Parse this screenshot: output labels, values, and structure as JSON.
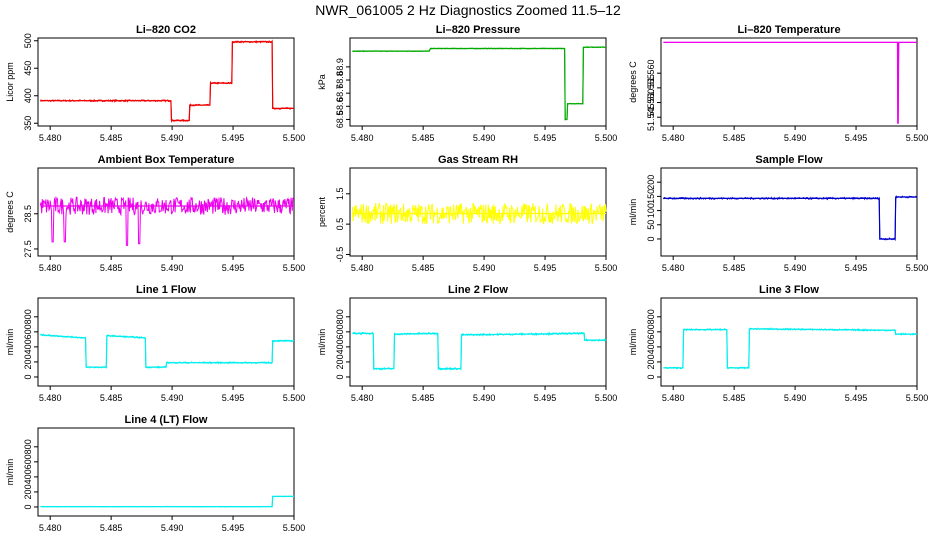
{
  "figure": {
    "title": "NWR_061005  2 Hz Diagnostics Zoomed 11.5–12"
  },
  "chart_data": [
    {
      "type": "line",
      "title": "Li–820 CO2",
      "ylabel": "Licor ppm",
      "color": "#ee0000",
      "xlim": [
        5.479,
        5.5
      ],
      "xticks": [
        "5.480",
        "5.485",
        "5.490",
        "5.495",
        "5.500"
      ],
      "ylim": [
        345,
        505
      ],
      "yticks": [
        "350",
        "400",
        "450",
        "500"
      ],
      "series": [
        {
          "x": [
            5.4792,
            5.4899,
            5.48995,
            5.4914,
            5.49145,
            5.4931,
            5.49315,
            5.4949,
            5.49495,
            5.4982,
            5.49825,
            5.5
          ],
          "y": [
            391,
            391,
            355,
            355,
            383,
            383,
            423,
            423,
            498,
            498,
            377,
            377
          ],
          "noise": 1.5
        }
      ]
    },
    {
      "type": "line",
      "title": "Li–820 Pressure",
      "ylabel": "kPa",
      "color": "#00aa00",
      "xlim": [
        5.479,
        5.5
      ],
      "xticks": [
        "5.480",
        "5.485",
        "5.490",
        "5.495",
        "5.500"
      ],
      "ylim": [
        68.45,
        69.12
      ],
      "yticks": [
        "68.5",
        "68.6",
        "68.7",
        "68.8",
        "68.9"
      ],
      "series": [
        {
          "x": [
            5.4792,
            5.4855,
            5.4856,
            5.4966,
            5.49665,
            5.4968,
            5.49685,
            5.4981,
            5.49815,
            5.5
          ],
          "y": [
            69.02,
            69.02,
            69.04,
            69.04,
            68.5,
            68.5,
            68.62,
            68.62,
            69.05,
            69.05
          ],
          "noise": 0.003
        }
      ]
    },
    {
      "type": "line",
      "title": "Li–820 Temperature",
      "ylabel": "degrees C",
      "color": "#ee00ee",
      "xlim": [
        5.479,
        5.5
      ],
      "xticks": [
        "5.480",
        "5.485",
        "5.490",
        "5.495",
        "5.500"
      ],
      "ylim": [
        51.542,
        51.572
      ],
      "yticks": [
        "51.545",
        "51.550",
        "51.555",
        "51.560"
      ],
      "series": [
        {
          "x": [
            5.4792,
            5.4984,
            5.49842,
            5.49846,
            5.4985,
            5.5
          ],
          "y": [
            51.5705,
            51.5705,
            51.543,
            51.543,
            51.5705,
            51.5705
          ],
          "noise": 0
        }
      ]
    },
    {
      "type": "line",
      "title": "Ambient Box Temperature",
      "ylabel": "degrees C",
      "color": "#ee00ee",
      "xlim": [
        5.479,
        5.5
      ],
      "xticks": [
        "5.480",
        "5.485",
        "5.490",
        "5.495",
        "5.500"
      ],
      "ylim": [
        27.3,
        29.8
      ],
      "yticks": [
        "27.5",
        "28.5"
      ],
      "series": [
        {
          "x": [
            5.4792,
            5.5
          ],
          "y": [
            28.72,
            28.72
          ],
          "noise": 0.25,
          "spikes": [
            [
              5.4802,
              27.7
            ],
            [
              5.4812,
              27.7
            ],
            [
              5.4863,
              27.6
            ],
            [
              5.4873,
              27.65
            ]
          ]
        }
      ]
    },
    {
      "type": "line",
      "title": "Gas Stream RH",
      "ylabel": "percent",
      "color": "#ffff00",
      "xlim": [
        5.479,
        5.5
      ],
      "xticks": [
        "5.480",
        "5.485",
        "5.490",
        "5.495",
        "5.500"
      ],
      "ylim": [
        -0.55,
        2.35
      ],
      "yticks": [
        "-0.5",
        "0.5",
        "1.5"
      ],
      "series": [
        {
          "x": [
            5.4792,
            5.5
          ],
          "y": [
            0.85,
            0.85
          ],
          "noise": 0.35
        }
      ]
    },
    {
      "type": "line",
      "title": "Sample Flow",
      "ylabel": "ml/min",
      "color": "#0000cc",
      "xlim": [
        5.479,
        5.5
      ],
      "xticks": [
        "5.480",
        "5.485",
        "5.490",
        "5.495",
        "5.500"
      ],
      "ylim": [
        -60,
        250
      ],
      "yticks": [
        "0",
        "50",
        "100",
        "150",
        "200"
      ],
      "series": [
        {
          "x": [
            5.4792,
            5.4969,
            5.49695,
            5.4982,
            5.49825,
            5.5
          ],
          "y": [
            143,
            143,
            0,
            0,
            148,
            148
          ],
          "noise": 3
        }
      ]
    },
    {
      "type": "line",
      "title": "Line 1 Flow",
      "ylabel": "ml/min",
      "color": "#00eeee",
      "xlim": [
        5.479,
        5.5
      ],
      "xticks": [
        "5.480",
        "5.485",
        "5.490",
        "5.495",
        "5.500"
      ],
      "ylim": [
        -120,
        1050
      ],
      "yticks": [
        "0",
        "200",
        "400",
        "600",
        "800"
      ],
      "series": [
        {
          "x": [
            5.4792,
            5.4829,
            5.48295,
            5.4846,
            5.48465,
            5.4878,
            5.48785,
            5.4895,
            5.48955,
            5.4982,
            5.49825,
            5.5
          ],
          "y": [
            560,
            520,
            130,
            130,
            550,
            520,
            130,
            130,
            190,
            190,
            480,
            480
          ],
          "noise": 10
        }
      ]
    },
    {
      "type": "line",
      "title": "Line 2 Flow",
      "ylabel": "ml/min",
      "color": "#00eeee",
      "xlim": [
        5.479,
        5.5
      ],
      "xticks": [
        "5.480",
        "5.485",
        "5.490",
        "5.495",
        "5.500"
      ],
      "ylim": [
        -120,
        1050
      ],
      "yticks": [
        "0",
        "200",
        "400",
        "600",
        "800"
      ],
      "series": [
        {
          "x": [
            5.4792,
            5.4809,
            5.48095,
            5.4826,
            5.48265,
            5.4862,
            5.48625,
            5.4881,
            5.48815,
            5.4982,
            5.49825,
            5.5
          ],
          "y": [
            580,
            580,
            110,
            110,
            570,
            580,
            110,
            110,
            560,
            580,
            490,
            490
          ],
          "noise": 12
        }
      ]
    },
    {
      "type": "line",
      "title": "Line 3 Flow",
      "ylabel": "ml/min",
      "color": "#00eeee",
      "xlim": [
        5.479,
        5.5
      ],
      "xticks": [
        "5.480",
        "5.485",
        "5.490",
        "5.495",
        "5.500"
      ],
      "ylim": [
        -120,
        1050
      ],
      "yticks": [
        "0",
        "200",
        "400",
        "600",
        "800"
      ],
      "series": [
        {
          "x": [
            5.4792,
            5.4808,
            5.48085,
            5.4844,
            5.48445,
            5.4862,
            5.48625,
            5.4982,
            5.49825,
            5.5
          ],
          "y": [
            120,
            120,
            630,
            630,
            120,
            120,
            640,
            620,
            570,
            570
          ],
          "noise": 10
        }
      ]
    },
    {
      "type": "line",
      "title": "Line 4 (LT) Flow",
      "ylabel": "ml/min",
      "color": "#00eeee",
      "xlim": [
        5.479,
        5.5
      ],
      "xticks": [
        "5.480",
        "5.485",
        "5.490",
        "5.495",
        "5.500"
      ],
      "ylim": [
        -120,
        1050
      ],
      "yticks": [
        "0",
        "200",
        "400",
        "600",
        "800"
      ],
      "series": [
        {
          "x": [
            5.4792,
            5.4982,
            5.49825,
            5.5
          ],
          "y": [
            5,
            5,
            140,
            140
          ],
          "noise": 3
        }
      ]
    }
  ]
}
